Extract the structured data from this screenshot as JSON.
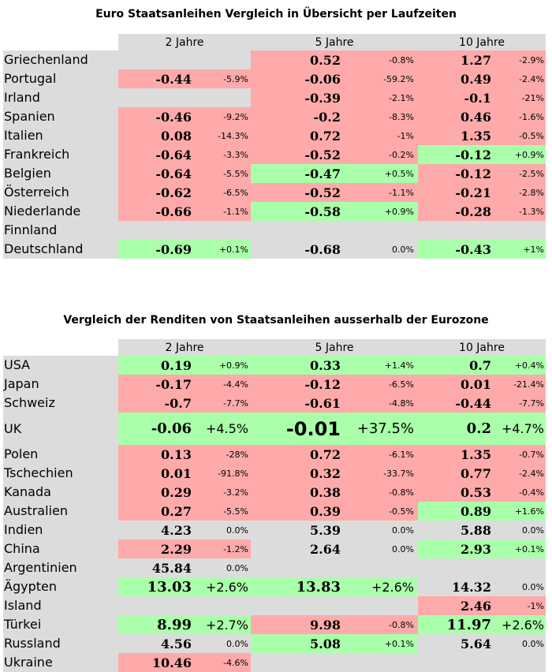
{
  "colors": {
    "red": "#ffaaaa",
    "green": "#aaffaa",
    "neutral": "#dcdcdc"
  },
  "tables": [
    {
      "title": "Euro Staatsanleihen Vergleich in Übersicht per Laufzeiten",
      "headers": [
        "2 Jahre",
        "5 Jahre",
        "10 Jahre"
      ],
      "rows": [
        {
          "country": "Griechenland",
          "cells": [
            {
              "v": "",
              "p": "",
              "c": ""
            },
            {
              "v": "0.52",
              "p": "-0.8%",
              "c": "red"
            },
            {
              "v": "1.27",
              "p": "-2.9%",
              "c": "red"
            }
          ]
        },
        {
          "country": "Portugal",
          "cells": [
            {
              "v": "-0.44",
              "p": "-5.9%",
              "c": "red"
            },
            {
              "v": "-0.06",
              "p": "-59.2%",
              "c": "red"
            },
            {
              "v": "0.49",
              "p": "-2.4%",
              "c": "red"
            }
          ]
        },
        {
          "country": "Irland",
          "cells": [
            {
              "v": "",
              "p": "",
              "c": ""
            },
            {
              "v": "-0.39",
              "p": "-2.1%",
              "c": "red"
            },
            {
              "v": "-0.1",
              "p": "-21%",
              "c": "red"
            }
          ]
        },
        {
          "country": "Spanien",
          "cells": [
            {
              "v": "-0.46",
              "p": "-9.2%",
              "c": "red"
            },
            {
              "v": "-0.2",
              "p": "-8.3%",
              "c": "red"
            },
            {
              "v": "0.46",
              "p": "-1.6%",
              "c": "red"
            }
          ]
        },
        {
          "country": "Italien",
          "cells": [
            {
              "v": "0.08",
              "p": "-14.3%",
              "c": "red"
            },
            {
              "v": "0.72",
              "p": "-1%",
              "c": "red"
            },
            {
              "v": "1.35",
              "p": "-0.5%",
              "c": "red"
            }
          ]
        },
        {
          "country": "Frankreich",
          "cells": [
            {
              "v": "-0.64",
              "p": "-3.3%",
              "c": "red"
            },
            {
              "v": "-0.52",
              "p": "-0.2%",
              "c": "red"
            },
            {
              "v": "-0.12",
              "p": "+0.9%",
              "c": "green"
            }
          ]
        },
        {
          "country": "Belgien",
          "cells": [
            {
              "v": "-0.64",
              "p": "-5.5%",
              "c": "red"
            },
            {
              "v": "-0.47",
              "p": "+0.5%",
              "c": "green"
            },
            {
              "v": "-0.12",
              "p": "-2.5%",
              "c": "red"
            }
          ]
        },
        {
          "country": "Österreich",
          "cells": [
            {
              "v": "-0.62",
              "p": "-6.5%",
              "c": "red"
            },
            {
              "v": "-0.52",
              "p": "-1.1%",
              "c": "red"
            },
            {
              "v": "-0.21",
              "p": "-2.8%",
              "c": "red"
            }
          ]
        },
        {
          "country": "Niederlande",
          "cells": [
            {
              "v": "-0.66",
              "p": "-1.1%",
              "c": "red"
            },
            {
              "v": "-0.58",
              "p": "+0.9%",
              "c": "green"
            },
            {
              "v": "-0.28",
              "p": "-1.3%",
              "c": "red"
            }
          ]
        },
        {
          "country": "Finnland",
          "cells": [
            {
              "v": "",
              "p": "",
              "c": ""
            },
            {
              "v": "",
              "p": "",
              "c": ""
            },
            {
              "v": "",
              "p": "",
              "c": ""
            }
          ]
        },
        {
          "country": "Deutschland",
          "cells": [
            {
              "v": "-0.69",
              "p": "+0.1%",
              "c": "green"
            },
            {
              "v": "-0.68",
              "p": "0.0%",
              "c": ""
            },
            {
              "v": "-0.43",
              "p": "+1%",
              "c": "green"
            }
          ]
        }
      ]
    },
    {
      "title": "Vergleich der Renditen von Staatsanleihen ausserhalb der Eurozone",
      "headers": [
        "2 Jahre",
        "5 Jahre",
        "10 Jahre"
      ],
      "rows": [
        {
          "country": "USA",
          "cells": [
            {
              "v": "0.19",
              "p": "+0.9%",
              "c": "green"
            },
            {
              "v": "0.33",
              "p": "+1.4%",
              "c": "green"
            },
            {
              "v": "0.7",
              "p": "+0.4%",
              "c": "green"
            }
          ]
        },
        {
          "country": "Japan",
          "cells": [
            {
              "v": "-0.17",
              "p": "-4.4%",
              "c": "red"
            },
            {
              "v": "-0.12",
              "p": "-6.5%",
              "c": "red"
            },
            {
              "v": "0.01",
              "p": "-21.4%",
              "c": "red"
            }
          ]
        },
        {
          "country": "Schweiz",
          "cells": [
            {
              "v": "-0.7",
              "p": "-7.7%",
              "c": "red"
            },
            {
              "v": "-0.61",
              "p": "-4.8%",
              "c": "red"
            },
            {
              "v": "-0.44",
              "p": "-7.7%",
              "c": "red"
            }
          ]
        },
        {
          "country": "UK",
          "tall": true,
          "cells": [
            {
              "v": "-0.06",
              "p": "+4.5%",
              "c": "green",
              "e": "lg"
            },
            {
              "v": "-0.01",
              "p": "+37.5%",
              "c": "green",
              "e": "xl"
            },
            {
              "v": "0.2",
              "p": "+4.7%",
              "c": "green",
              "e": "lg"
            }
          ]
        },
        {
          "country": "Polen",
          "cells": [
            {
              "v": "0.13",
              "p": "-28%",
              "c": "red"
            },
            {
              "v": "0.72",
              "p": "-6.1%",
              "c": "red"
            },
            {
              "v": "1.35",
              "p": "-0.7%",
              "c": "red"
            }
          ]
        },
        {
          "country": "Tschechien",
          "cells": [
            {
              "v": "0.01",
              "p": "-91.8%",
              "c": "red"
            },
            {
              "v": "0.32",
              "p": "-33.7%",
              "c": "red"
            },
            {
              "v": "0.77",
              "p": "-2.4%",
              "c": "red"
            }
          ]
        },
        {
          "country": "Kanada",
          "cells": [
            {
              "v": "0.29",
              "p": "-3.2%",
              "c": "red"
            },
            {
              "v": "0.38",
              "p": "-0.8%",
              "c": "red"
            },
            {
              "v": "0.53",
              "p": "-0.4%",
              "c": "red"
            }
          ]
        },
        {
          "country": "Australien",
          "cells": [
            {
              "v": "0.27",
              "p": "-5.5%",
              "c": "red"
            },
            {
              "v": "0.39",
              "p": "-0.5%",
              "c": "red"
            },
            {
              "v": "0.89",
              "p": "+1.6%",
              "c": "green"
            }
          ]
        },
        {
          "country": "Indien",
          "cells": [
            {
              "v": "4.23",
              "p": "0.0%",
              "c": ""
            },
            {
              "v": "5.39",
              "p": "0.0%",
              "c": ""
            },
            {
              "v": "5.88",
              "p": "0.0%",
              "c": ""
            }
          ]
        },
        {
          "country": "China",
          "cells": [
            {
              "v": "2.29",
              "p": "-1.2%",
              "c": "red"
            },
            {
              "v": "2.64",
              "p": "0.0%",
              "c": ""
            },
            {
              "v": "2.93",
              "p": "+0.1%",
              "c": "green"
            }
          ]
        },
        {
          "country": "Argentinien",
          "cells": [
            {
              "v": "45.84",
              "p": "0.0%",
              "c": ""
            },
            {
              "v": "",
              "p": "",
              "c": ""
            },
            {
              "v": "",
              "p": "",
              "c": ""
            }
          ]
        },
        {
          "country": "Ägypten",
          "cells": [
            {
              "v": "13.03",
              "p": "+2.6%",
              "c": "green",
              "e": "lg"
            },
            {
              "v": "13.83",
              "p": "+2.6%",
              "c": "green",
              "e": "lg"
            },
            {
              "v": "14.32",
              "p": "0.0%",
              "c": ""
            }
          ]
        },
        {
          "country": "Island",
          "cells": [
            {
              "v": "",
              "p": "",
              "c": ""
            },
            {
              "v": "",
              "p": "",
              "c": ""
            },
            {
              "v": "2.46",
              "p": "-1%",
              "c": "red"
            }
          ]
        },
        {
          "country": "Türkei",
          "cells": [
            {
              "v": "8.99",
              "p": "+2.7%",
              "c": "green",
              "e": "lg"
            },
            {
              "v": "9.98",
              "p": "-0.8%",
              "c": "red"
            },
            {
              "v": "11.97",
              "p": "+2.6%",
              "c": "green",
              "e": "lg"
            }
          ]
        },
        {
          "country": "Russland",
          "cells": [
            {
              "v": "4.56",
              "p": "0.0%",
              "c": ""
            },
            {
              "v": "5.08",
              "p": "+0.1%",
              "c": "green"
            },
            {
              "v": "5.64",
              "p": "0.0%",
              "c": ""
            }
          ]
        },
        {
          "country": "Ukraine",
          "cells": [
            {
              "v": "10.46",
              "p": "-4.6%",
              "c": "red"
            },
            {
              "v": "",
              "p": "",
              "c": ""
            },
            {
              "v": "",
              "p": "",
              "c": ""
            }
          ]
        }
      ]
    }
  ]
}
